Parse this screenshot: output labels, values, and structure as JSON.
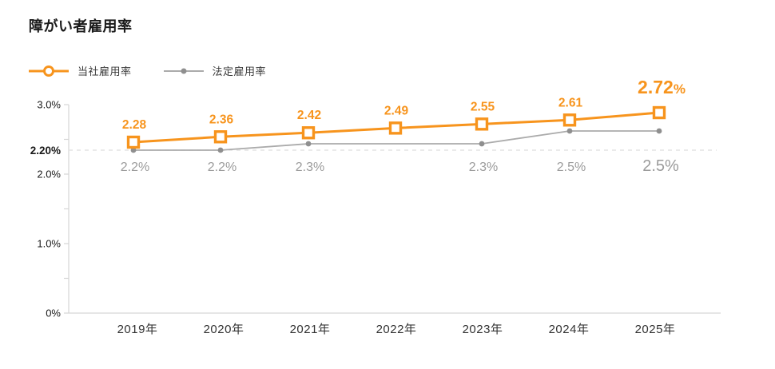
{
  "page": {
    "title": "障がい者雇用率"
  },
  "legend": {
    "items": [
      {
        "label": "当社雇用率",
        "series": "company"
      },
      {
        "label": "法定雇用率",
        "series": "legal"
      }
    ]
  },
  "colors": {
    "company": "#f7941d",
    "legal_line": "#ababab",
    "legal_dot": "#8f8f8f",
    "legal_label": "#9b9b9b",
    "axis": "#d6d6d6",
    "reference_line": "#e4e4e4",
    "tick_text": "#1a1a1a",
    "x_label": "#333333"
  },
  "chart_data": {
    "type": "line",
    "title": "障がい者雇用率",
    "categories": [
      "2019年",
      "2020年",
      "2021年",
      "2022年",
      "2023年",
      "2024年",
      "2025年"
    ],
    "series": [
      {
        "name": "当社雇用率",
        "values": [
          2.28,
          2.36,
          2.42,
          2.49,
          2.55,
          2.61,
          2.72
        ],
        "labels": [
          "2.28",
          "2.36",
          "2.42",
          "2.49",
          "2.55",
          "2.61",
          "2.72%"
        ],
        "markers": [
          true,
          true,
          true,
          true,
          true,
          true,
          true
        ],
        "marker_shape": "open-square"
      },
      {
        "name": "法定雇用率",
        "values": [
          2.2,
          2.2,
          2.3,
          2.3,
          2.3,
          2.5,
          2.5
        ],
        "labels": [
          "2.2%",
          "2.2%",
          "2.3%",
          "",
          "2.3%",
          "2.5%",
          "2.5%"
        ],
        "markers": [
          true,
          true,
          true,
          false,
          true,
          true,
          true
        ],
        "marker_shape": "dot"
      }
    ],
    "xlabel": "",
    "ylabel": "",
    "ylim": [
      0,
      3
    ],
    "y_ticks": [
      {
        "label": "0%",
        "value": 0
      },
      {
        "label": "",
        "value": 0.5
      },
      {
        "label": "1.0%",
        "value": 1
      },
      {
        "label": "",
        "value": 1.5
      },
      {
        "label": "2.0%",
        "value": 2
      },
      {
        "label": "",
        "value": 2.5
      },
      {
        "label": "3.0%",
        "value": 3
      }
    ],
    "reference_line": {
      "label": "2.20%",
      "value": 2.2
    },
    "legend_position": "top-left",
    "grid": "dashed-reference-line-only"
  }
}
